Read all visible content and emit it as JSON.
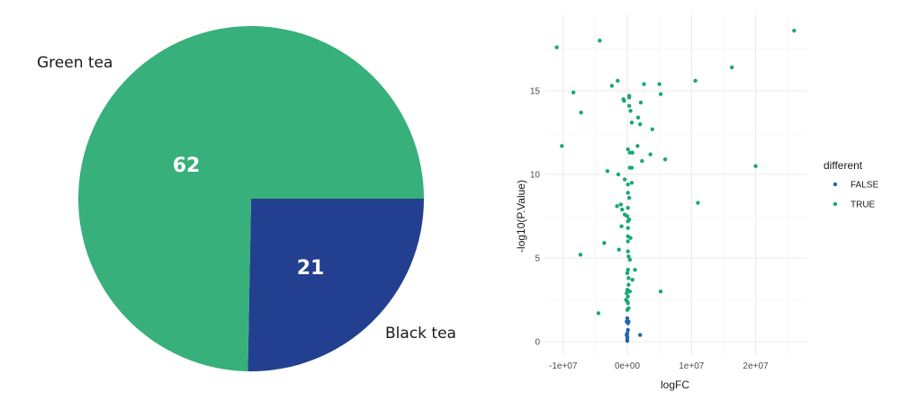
{
  "chart_data": [
    {
      "type": "pie",
      "title": "",
      "categories": [
        "Green tea",
        "Black tea"
      ],
      "values": [
        62,
        21
      ],
      "colors": [
        "#37b07b",
        "#233f8f"
      ],
      "data_labels": [
        "62",
        "21"
      ],
      "label_color": "#ffffff",
      "start_angle_note": "Black tea slice spans from 3 o'clock clockwise to ~6 o'clock"
    },
    {
      "type": "scatter",
      "title": "",
      "xlabel": "logFC",
      "ylabel": "-log10(P.Value)",
      "xlim": [
        -12000000,
        27000000
      ],
      "ylim": [
        -0.8,
        18.8
      ],
      "x_ticks": [
        -10000000,
        0,
        10000000,
        20000000
      ],
      "x_tick_labels": [
        "-1e+07",
        "0e+00",
        "1e+07",
        "2e+07"
      ],
      "y_ticks": [
        0,
        5,
        10,
        15
      ],
      "y_tick_labels": [
        "0",
        "5",
        "10",
        "15"
      ],
      "grid": true,
      "legend": {
        "title": "different",
        "position": "right",
        "entries": [
          {
            "label": "FALSE",
            "color": "#2166ac"
          },
          {
            "label": "TRUE",
            "color": "#1aa874"
          }
        ]
      },
      "series": [
        {
          "name": "TRUE",
          "color": "#1aa874",
          "points": [
            [
              -11000000,
              17.6
            ],
            [
              -4300000,
              18.0
            ],
            [
              26000000,
              18.6
            ],
            [
              16300000,
              16.4
            ],
            [
              10600000,
              15.6
            ],
            [
              -8400000,
              14.9
            ],
            [
              -7200000,
              13.7
            ],
            [
              -2400000,
              15.3
            ],
            [
              -1500000,
              15.6
            ],
            [
              2600000,
              15.4
            ],
            [
              5000000,
              15.4
            ],
            [
              5200000,
              14.8
            ],
            [
              -600000,
              14.5
            ],
            [
              -500000,
              14.4
            ],
            [
              300000,
              14.7
            ],
            [
              300000,
              14.6
            ],
            [
              2100000,
              14.3
            ],
            [
              300000,
              14.1
            ],
            [
              500000,
              13.8
            ],
            [
              1700000,
              13.4
            ],
            [
              700000,
              13.1
            ],
            [
              2000000,
              13.0
            ],
            [
              3900000,
              12.7
            ],
            [
              -10200000,
              11.7
            ],
            [
              100000,
              11.5
            ],
            [
              1600000,
              11.7
            ],
            [
              400000,
              11.3
            ],
            [
              800000,
              11.3
            ],
            [
              3600000,
              11.2
            ],
            [
              5900000,
              10.9
            ],
            [
              2300000,
              10.8
            ],
            [
              400000,
              10.4
            ],
            [
              700000,
              10.4
            ],
            [
              20000000,
              10.5
            ],
            [
              -3100000,
              10.2
            ],
            [
              -1400000,
              10.0
            ],
            [
              -400000,
              9.7
            ],
            [
              100000,
              9.4
            ],
            [
              700000,
              9.5
            ],
            [
              100000,
              8.9
            ],
            [
              300000,
              8.6
            ],
            [
              -1600000,
              8.1
            ],
            [
              -1000000,
              8.2
            ],
            [
              11000000,
              8.3
            ],
            [
              -800000,
              7.9
            ],
            [
              100000,
              8.0
            ],
            [
              -400000,
              7.6
            ],
            [
              0,
              7.5
            ],
            [
              300000,
              7.3
            ],
            [
              100000,
              7.2
            ],
            [
              -900000,
              6.9
            ],
            [
              100000,
              6.8
            ],
            [
              -3600000,
              5.9
            ],
            [
              -1300000,
              5.5
            ],
            [
              100000,
              6.3
            ],
            [
              500000,
              6.2
            ],
            [
              100000,
              6.0
            ],
            [
              -7300000,
              5.2
            ],
            [
              100000,
              5.4
            ],
            [
              200000,
              5.1
            ],
            [
              400000,
              4.9
            ],
            [
              100000,
              4.3
            ],
            [
              1200000,
              4.3
            ],
            [
              0,
              4.1
            ],
            [
              200000,
              3.8
            ],
            [
              800000,
              3.7
            ],
            [
              200000,
              3.4
            ],
            [
              5200000,
              3.0
            ],
            [
              0,
              3.1
            ],
            [
              -100000,
              2.9
            ],
            [
              400000,
              3.0
            ],
            [
              100000,
              2.7
            ],
            [
              -200000,
              2.5
            ],
            [
              0,
              2.4
            ],
            [
              100000,
              2.3
            ],
            [
              -4500000,
              1.7
            ],
            [
              0,
              1.9
            ],
            [
              200000,
              2.0
            ]
          ]
        },
        {
          "name": "FALSE",
          "color": "#2166ac",
          "points": [
            [
              0,
              1.4
            ],
            [
              -100000,
              1.2
            ],
            [
              100000,
              1.1
            ],
            [
              200000,
              1.2
            ],
            [
              100000,
              0.7
            ],
            [
              0,
              0.5
            ],
            [
              -100000,
              0.4
            ],
            [
              0,
              0.3
            ],
            [
              0,
              0.15
            ],
            [
              0,
              0.05
            ],
            [
              2000000,
              0.4
            ]
          ]
        }
      ]
    }
  ]
}
